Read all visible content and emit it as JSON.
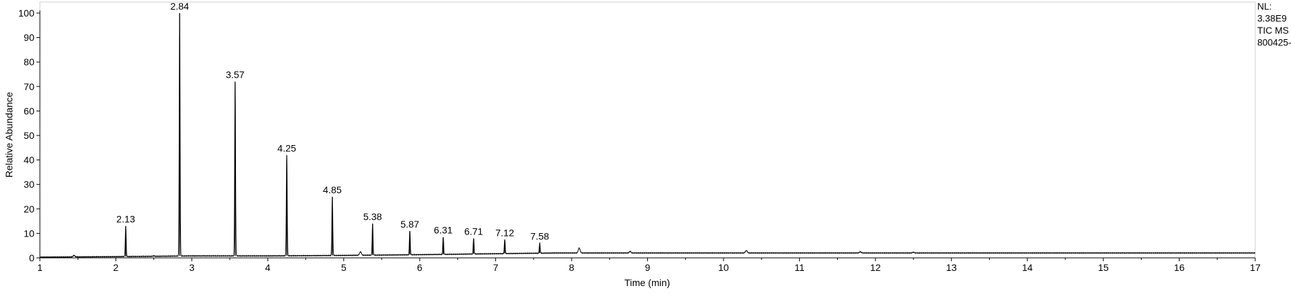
{
  "chart_data": {
    "type": "line",
    "xlabel": "Time (min)",
    "ylabel": "Relative Abundance",
    "xlim": [
      1,
      17
    ],
    "ylim": [
      0,
      100
    ],
    "x_ticks": [
      1,
      2,
      3,
      4,
      5,
      6,
      7,
      8,
      9,
      10,
      11,
      12,
      13,
      14,
      15,
      16,
      17
    ],
    "y_ticks": [
      0,
      10,
      20,
      30,
      40,
      50,
      60,
      70,
      80,
      90,
      100
    ],
    "grid": false,
    "legend": "none",
    "info_lines": [
      "NL:",
      "3.38E9",
      "TIC  MS",
      "800425-"
    ],
    "peaks": [
      {
        "label": "2.13",
        "x": 2.13,
        "y": 13
      },
      {
        "label": "2.84",
        "x": 2.84,
        "y": 100
      },
      {
        "label": "3.57",
        "x": 3.57,
        "y": 72
      },
      {
        "label": "4.25",
        "x": 4.25,
        "y": 42
      },
      {
        "label": "4.85",
        "x": 4.85,
        "y": 25
      },
      {
        "label": "5.38",
        "x": 5.38,
        "y": 14
      },
      {
        "label": "5.87",
        "x": 5.87,
        "y": 11
      },
      {
        "label": "6.31",
        "x": 6.31,
        "y": 8.5
      },
      {
        "label": "6.71",
        "x": 6.71,
        "y": 8
      },
      {
        "label": "7.12",
        "x": 7.12,
        "y": 7.5
      },
      {
        "label": "7.58",
        "x": 7.58,
        "y": 6
      }
    ],
    "minor_peaks": [
      {
        "x": 1.45,
        "y": 1.0
      },
      {
        "x": 2.5,
        "y": 0.8
      },
      {
        "x": 5.22,
        "y": 2.5
      },
      {
        "x": 8.1,
        "y": 4.0
      },
      {
        "x": 8.77,
        "y": 2.6
      },
      {
        "x": 10.3,
        "y": 3.0
      },
      {
        "x": 11.8,
        "y": 2.5
      },
      {
        "x": 12.5,
        "y": 2.3
      }
    ],
    "baseline": [
      {
        "x": 1.0,
        "y": 0.3
      },
      {
        "x": 2.0,
        "y": 0.5
      },
      {
        "x": 3.0,
        "y": 0.8
      },
      {
        "x": 4.0,
        "y": 0.8
      },
      {
        "x": 5.0,
        "y": 1.0
      },
      {
        "x": 6.0,
        "y": 1.3
      },
      {
        "x": 7.0,
        "y": 1.7
      },
      {
        "x": 7.8,
        "y": 2.0
      },
      {
        "x": 9.0,
        "y": 2.0
      },
      {
        "x": 10.0,
        "y": 2.0
      },
      {
        "x": 12.0,
        "y": 2.0
      },
      {
        "x": 17.0,
        "y": 2.0
      }
    ]
  }
}
